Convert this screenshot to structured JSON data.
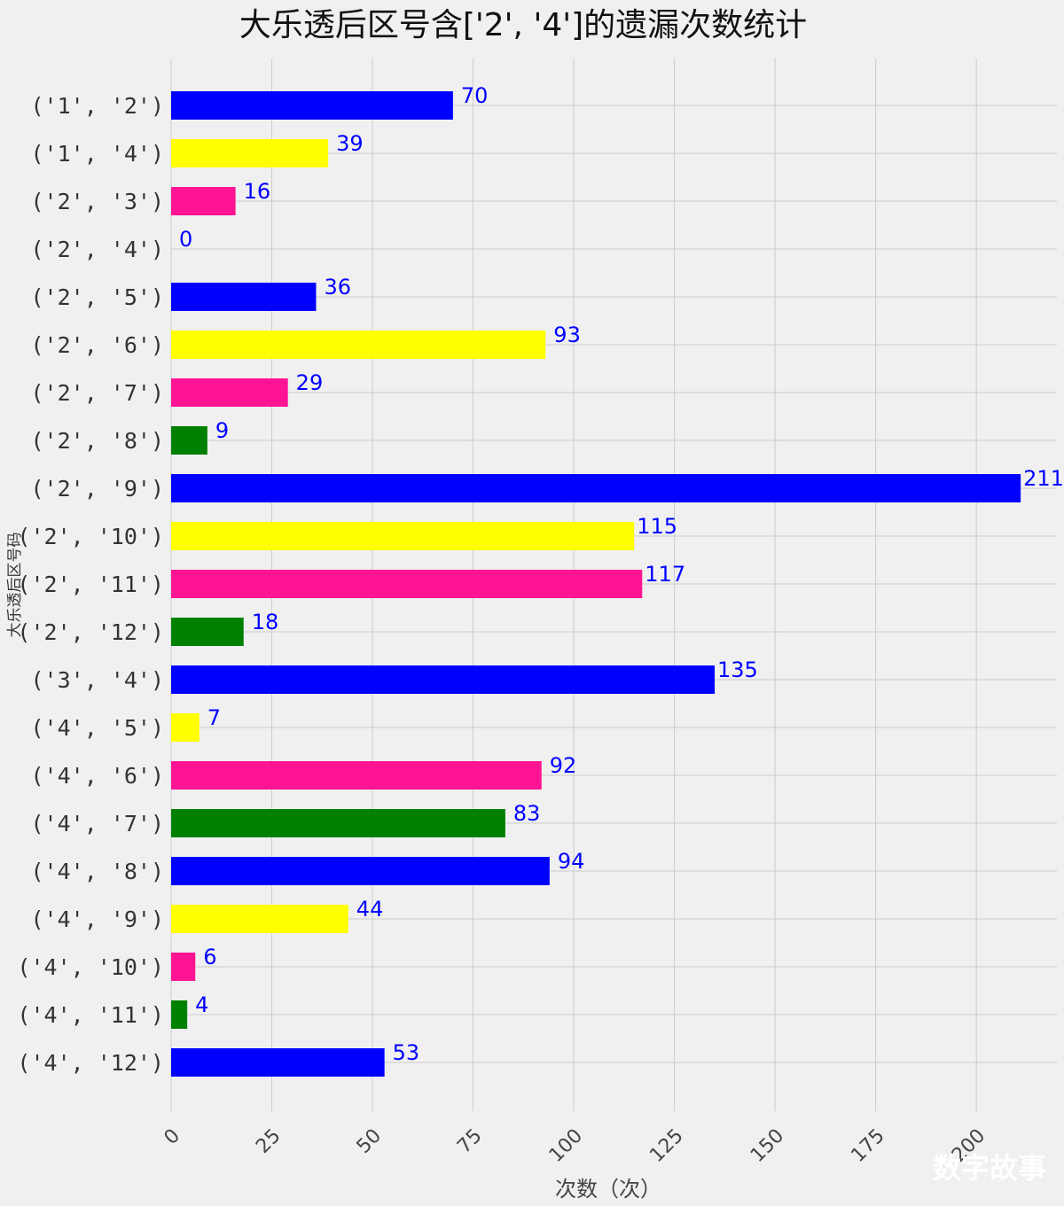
{
  "chart_data": {
    "type": "bar",
    "orientation": "horizontal",
    "title": "大乐透后区号含['2', '4']的遗漏次数统计",
    "xlabel": "次数（次）",
    "ylabel": "大乐透后区号码",
    "categories": [
      "('1', '2')",
      "('1', '4')",
      "('2', '3')",
      "('2', '4')",
      "('2', '5')",
      "('2', '6')",
      "('2', '7')",
      "('2', '8')",
      "('2', '9')",
      "('2', '10')",
      "('2', '11')",
      "('2', '12')",
      "('3', '4')",
      "('4', '5')",
      "('4', '6')",
      "('4', '7')",
      "('4', '8')",
      "('4', '9')",
      "('4', '10')",
      "('4', '11')",
      "('4', '12')"
    ],
    "values": [
      70,
      39,
      16,
      0,
      36,
      93,
      29,
      9,
      211,
      115,
      117,
      18,
      135,
      7,
      92,
      83,
      94,
      44,
      6,
      4,
      53
    ],
    "xticks": [
      "0",
      "25",
      "50",
      "75",
      "100",
      "125",
      "150",
      "175",
      "200"
    ],
    "xlim": [
      0,
      220
    ],
    "bar_colors": [
      "#0000ff",
      "#ffff00",
      "#ff1493",
      "#008000"
    ],
    "value_label_color": "#0000ff",
    "grid": true
  },
  "watermark": "数字故事"
}
